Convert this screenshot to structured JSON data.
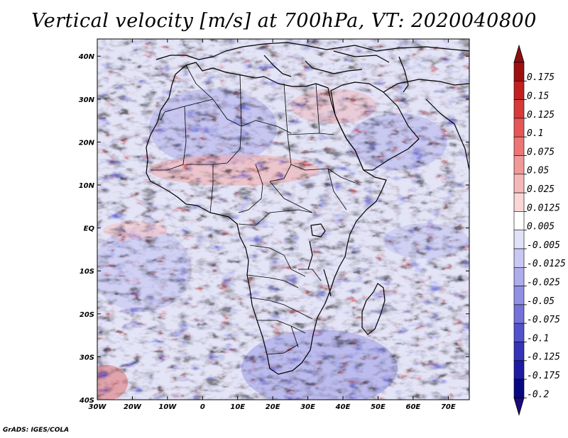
{
  "title": "Vertical velocity [m/s] at 700hPa, VT: 2020040800",
  "credit": "GrADS: IGES/COLA",
  "map": {
    "region": "Africa",
    "variable": "vertical velocity",
    "lon_range": [
      -30,
      76
    ],
    "lat_range": [
      -40,
      44
    ],
    "lon_ticks": [
      "30W",
      "20W",
      "10W",
      "0",
      "10E",
      "20E",
      "30E",
      "40E",
      "50E",
      "60E",
      "70E"
    ],
    "lat_ticks": [
      "40N",
      "30N",
      "20N",
      "10N",
      "EQ",
      "10S",
      "20S",
      "30S",
      "40S"
    ]
  },
  "colorbar": {
    "labels": [
      "0.175",
      "0.15",
      "0.125",
      "0.1",
      "0.075",
      "0.05",
      "0.025",
      "0.0125",
      "0.005",
      "-0.005",
      "-0.0125",
      "-0.025",
      "-0.05",
      "-0.075",
      "-0.1",
      "-0.125",
      "-0.175",
      "-0.2"
    ],
    "colors": [
      "#9e1010",
      "#c21f1f",
      "#d63a3a",
      "#e55757",
      "#ec7676",
      "#f19898",
      "#f5b8b8",
      "#fad6d6",
      "#ffffff",
      "#e1e1f8",
      "#c8c8f2",
      "#adadeb",
      "#9191e3",
      "#7373d8",
      "#5252cb",
      "#3434b8",
      "#1c1ca3",
      "#080880"
    ],
    "top_arrow_color": "#8c1010",
    "bottom_arrow_color": "#1a0a7a"
  }
}
